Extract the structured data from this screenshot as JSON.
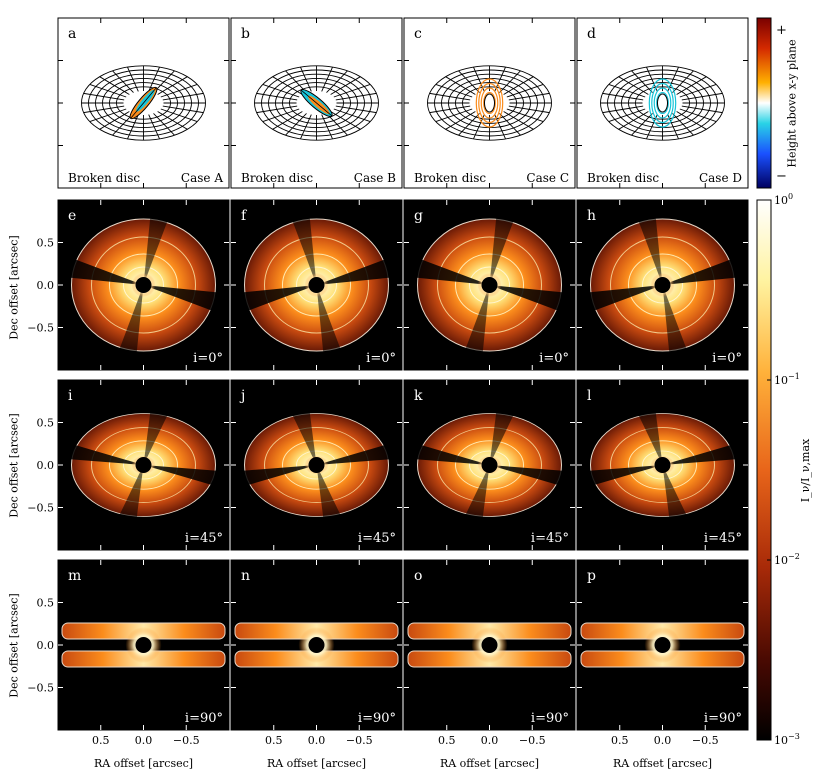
{
  "rows": [
    {
      "kind": "geometry",
      "panels": [
        {
          "letter": "a",
          "caption_left": "Broken disc",
          "caption_right": "Case A"
        },
        {
          "letter": "b",
          "caption_left": "Broken disc",
          "caption_right": "Case B"
        },
        {
          "letter": "c",
          "caption_left": "Broken disc",
          "caption_right": "Case C"
        },
        {
          "letter": "d",
          "caption_left": "Broken disc",
          "caption_right": "Case D"
        }
      ]
    },
    {
      "kind": "image",
      "inclination": "i=0°",
      "panels": [
        {
          "letter": "e"
        },
        {
          "letter": "f"
        },
        {
          "letter": "g"
        },
        {
          "letter": "h"
        }
      ]
    },
    {
      "kind": "image",
      "inclination": "i=45°",
      "panels": [
        {
          "letter": "i"
        },
        {
          "letter": "j"
        },
        {
          "letter": "k"
        },
        {
          "letter": "l"
        }
      ]
    },
    {
      "kind": "image",
      "inclination": "i=90°",
      "panels": [
        {
          "letter": "m"
        },
        {
          "letter": "n"
        },
        {
          "letter": "o"
        },
        {
          "letter": "p"
        }
      ]
    }
  ],
  "axes": {
    "ylabel": "Dec offset [arcsec]",
    "xlabel": "RA offset [arcsec]",
    "yticks": [
      "0.5",
      "0.0",
      "−0.5"
    ],
    "xticks": [
      "0.5",
      "0.0",
      "−0.5"
    ]
  },
  "colorbar_height": {
    "label": "Height above x-y plane",
    "top_sign": "+",
    "bottom_sign": "−"
  },
  "colorbar_intensity": {
    "label": "I_ν/I_ν,max",
    "scale": "log",
    "tick_labels": [
      "10^0",
      "10^−1",
      "10^−2",
      "10^−3"
    ]
  },
  "colors": {
    "bright": "#ffffe0",
    "yellow": "#ffe27a",
    "orange": "#fb8c1c",
    "mid": "#c84a10",
    "dark": "#6a1a06",
    "background": "#000000",
    "cyan": "#17c4d8"
  }
}
